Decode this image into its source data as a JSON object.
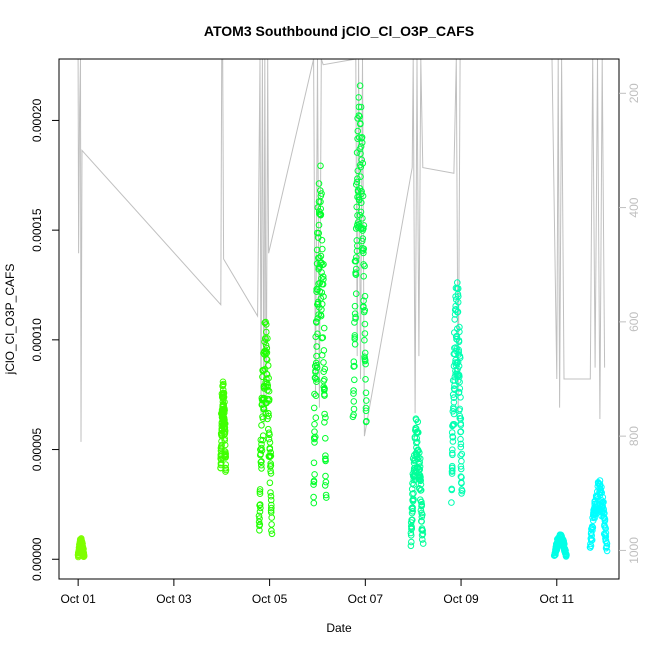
{
  "chart_data": {
    "type": "scatter",
    "title": "ATOM3 Southbound jClO_Cl_O3P_CAFS",
    "xlabel": "Date",
    "ylabel": "jClO_Cl_O3P_CAFS",
    "x_tick_labels": [
      "Oct 01",
      "Oct 03",
      "Oct 05",
      "Oct 07",
      "Oct 09",
      "Oct 11"
    ],
    "x_ticks_day": [
      1,
      3,
      5,
      7,
      9,
      11
    ],
    "xlim_day": [
      0.6,
      12.3
    ],
    "y_tick_labels": [
      "0.00000",
      "0.00005",
      "0.00010",
      "0.00015",
      "0.00020"
    ],
    "y_ticks": [
      0,
      5e-05,
      0.0001,
      0.00015,
      0.0002
    ],
    "ylim": [
      -9e-06,
      0.000228
    ],
    "y2_tick_labels": [
      "200",
      "400",
      "600",
      "800",
      "1000"
    ],
    "y2_ticks": [
      200,
      400,
      600,
      800,
      1000
    ],
    "y2lim": [
      1050,
      140
    ],
    "y2_reversed": true,
    "legend": "none",
    "grid": false,
    "colors": {
      "secondary_line": "#c0c0c0",
      "axis": "#000000",
      "right_axis": "#bfbfbf"
    },
    "series": [
      {
        "day_range": [
          1.0,
          1.12
        ],
        "y_range": [
          0.0,
          9.5e-06
        ],
        "color": "#7fff00"
      },
      {
        "day_range": [
          3.98,
          4.08
        ],
        "y_range": [
          3.5e-05,
          8.2e-05
        ],
        "color": "#3fff00"
      },
      {
        "day_range": [
          4.78,
          5.05
        ],
        "y_range": [
          0.0,
          0.00011
        ],
        "color": "#1fff00"
      },
      {
        "day_range": [
          5.92,
          6.18
        ],
        "y_range": [
          5e-06,
          0.000183
        ],
        "color": "#00ff2a"
      },
      {
        "day_range": [
          6.75,
          7.02
        ],
        "y_range": [
          4.2e-05,
          0.00022
        ],
        "color": "#00ff40"
      },
      {
        "day_range": [
          7.95,
          8.2
        ],
        "y_range": [
          0.0,
          6.5e-05
        ],
        "color": "#00ff99"
      },
      {
        "day_range": [
          8.8,
          9.02
        ],
        "y_range": [
          1.5e-05,
          0.00013
        ],
        "color": "#00ffb2"
      },
      {
        "day_range": [
          10.95,
          11.2
        ],
        "y_range": [
          0.0,
          1.15e-05
        ],
        "color": "#00ffe6"
      },
      {
        "day_range": [
          11.7,
          12.05
        ],
        "y_range": [
          0.0,
          3.7e-05
        ],
        "color": "#00ffff"
      }
    ]
  }
}
